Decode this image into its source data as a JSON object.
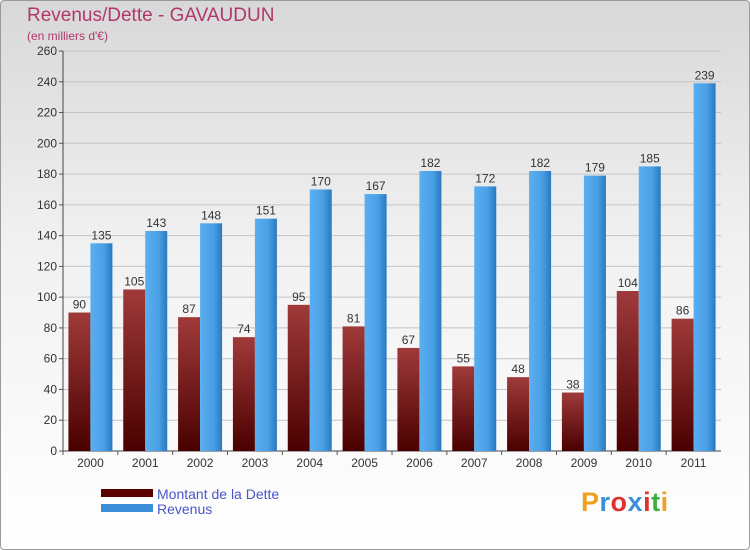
{
  "header": {
    "title": "Revenus/Dette - GAVAUDUN",
    "subtitle": "(en milliers d'€)"
  },
  "chart_data": {
    "type": "bar",
    "categories": [
      "2000",
      "2001",
      "2002",
      "2003",
      "2004",
      "2005",
      "2006",
      "2007",
      "2008",
      "2009",
      "2010",
      "2011"
    ],
    "series": [
      {
        "name": "Montant de la Dette",
        "values": [
          90,
          105,
          87,
          74,
          95,
          81,
          67,
          55,
          48,
          38,
          104,
          86
        ],
        "color": "#7a1a1a"
      },
      {
        "name": "Revenus",
        "values": [
          135,
          143,
          148,
          151,
          170,
          167,
          182,
          172,
          182,
          179,
          185,
          239
        ],
        "color": "#4a9fe0"
      }
    ],
    "title": "Revenus/Dette - GAVAUDUN",
    "subtitle": "(en milliers d'€)",
    "ylim": [
      0,
      260
    ],
    "yticks": [
      0,
      20,
      40,
      60,
      80,
      100,
      120,
      140,
      160,
      180,
      200,
      220,
      240,
      260
    ],
    "grid": true,
    "legend": "bottom-left",
    "data_labels": true
  },
  "legend": {
    "items": [
      {
        "label": "Montant de la Dette",
        "color": "#5a0000"
      },
      {
        "label": "Revenus",
        "color": "#3a8fd8"
      }
    ]
  },
  "branding": {
    "logo_text": "Proxiti",
    "logo_colors": [
      "#f0a020",
      "#3a8fd8",
      "#e03030",
      "#3a8fd8",
      "#e03030",
      "#3ab040",
      "#f0a020"
    ]
  }
}
